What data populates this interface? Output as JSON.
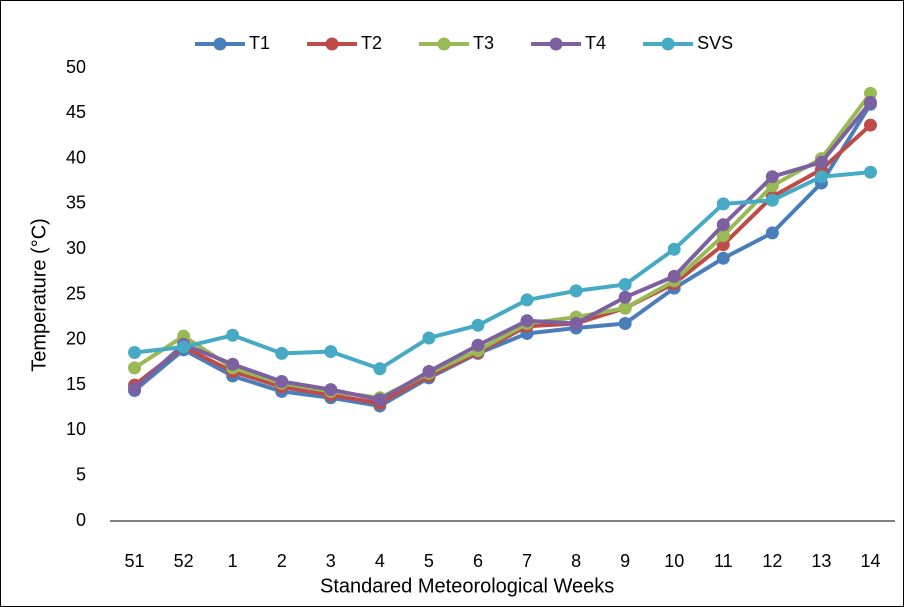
{
  "chart_data": {
    "type": "line",
    "x_label": "Standared Meteorological Weeks",
    "y_label": "Temperature (°C)",
    "categories": [
      "51",
      "52",
      "1",
      "2",
      "3",
      "4",
      "5",
      "6",
      "7",
      "8",
      "9",
      "10",
      "11",
      "12",
      "13",
      "14"
    ],
    "series": [
      {
        "name": "T1",
        "color": "#4a7ebb",
        "values": [
          14.4,
          18.9,
          16.0,
          14.3,
          13.6,
          12.7,
          15.8,
          18.5,
          20.7,
          21.3,
          21.8,
          25.7,
          29.0,
          31.8,
          37.3,
          46.0
        ]
      },
      {
        "name": "T2",
        "color": "#be4b48",
        "values": [
          15.0,
          19.2,
          16.5,
          14.8,
          13.9,
          13.0,
          16.0,
          18.6,
          21.5,
          21.8,
          23.5,
          26.2,
          30.5,
          35.8,
          38.8,
          43.7
        ]
      },
      {
        "name": "T3",
        "color": "#98b954",
        "values": [
          16.9,
          20.4,
          16.9,
          15.2,
          14.3,
          13.6,
          16.3,
          18.8,
          21.8,
          22.5,
          23.5,
          26.5,
          31.5,
          37.0,
          40.0,
          47.2
        ]
      },
      {
        "name": "T4",
        "color": "#7d60a0",
        "values": [
          14.6,
          19.5,
          17.3,
          15.4,
          14.5,
          13.4,
          16.5,
          19.4,
          22.1,
          21.8,
          24.7,
          27.0,
          32.7,
          38.0,
          39.6,
          46.2
        ]
      },
      {
        "name": "SVS",
        "color": "#46aac5",
        "values": [
          18.6,
          19.2,
          20.5,
          18.5,
          18.7,
          16.8,
          20.2,
          21.6,
          24.4,
          25.4,
          26.1,
          30.0,
          35.0,
          35.4,
          38.0,
          38.5
        ]
      }
    ],
    "ylim": [
      0,
      50
    ],
    "yticks": [
      0,
      5,
      10,
      15,
      20,
      25,
      30,
      35,
      40,
      45,
      50
    ],
    "grid": false,
    "legend": "top"
  }
}
